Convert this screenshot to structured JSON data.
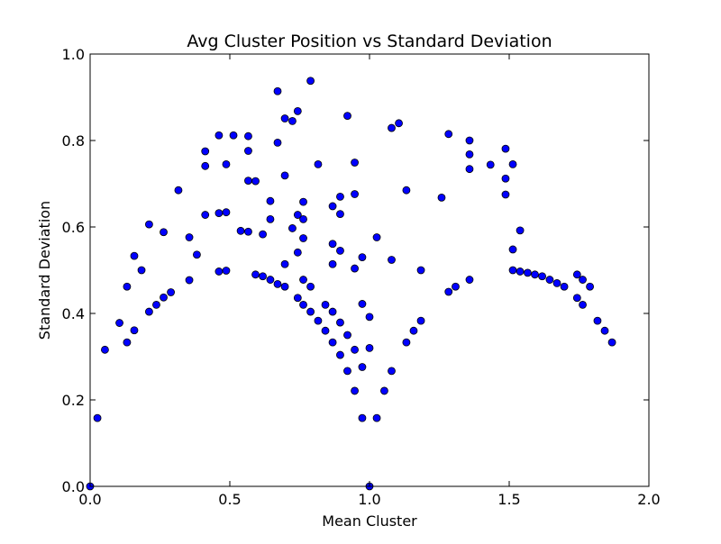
{
  "chart_data": {
    "type": "scatter",
    "title": "Avg Cluster Position vs Standard Deviation",
    "xlabel": "Mean Cluster",
    "ylabel": "Standard Deviation",
    "xlim": [
      0.0,
      2.0
    ],
    "ylim": [
      0.0,
      1.0
    ],
    "x_ticks": [
      "0.0",
      "0.5",
      "1.0",
      "1.5",
      "2.0"
    ],
    "y_ticks": [
      "0.0",
      "0.2",
      "0.4",
      "0.6",
      "0.8",
      "1.0"
    ],
    "grid": false,
    "marker_color": "#0000ff",
    "marker_edge_color": "#000000",
    "series": [
      {
        "points": [
          [
            0.0,
            0.0
          ],
          [
            0.026,
            0.158
          ],
          [
            0.053,
            0.316
          ],
          [
            0.105,
            0.378
          ],
          [
            0.132,
            0.333
          ],
          [
            0.132,
            0.462
          ],
          [
            0.158,
            0.361
          ],
          [
            0.158,
            0.533
          ],
          [
            0.184,
            0.5
          ],
          [
            0.211,
            0.404
          ],
          [
            0.211,
            0.606
          ],
          [
            0.237,
            0.42
          ],
          [
            0.263,
            0.437
          ],
          [
            0.263,
            0.588
          ],
          [
            0.289,
            0.449
          ],
          [
            0.316,
            0.685
          ],
          [
            0.355,
            0.477
          ],
          [
            0.355,
            0.576
          ],
          [
            0.382,
            0.536
          ],
          [
            0.412,
            0.628
          ],
          [
            0.412,
            0.741
          ],
          [
            0.412,
            0.775
          ],
          [
            0.461,
            0.497
          ],
          [
            0.461,
            0.632
          ],
          [
            0.461,
            0.812
          ],
          [
            0.487,
            0.499
          ],
          [
            0.487,
            0.634
          ],
          [
            0.487,
            0.745
          ],
          [
            0.513,
            0.812
          ],
          [
            0.539,
            0.591
          ],
          [
            0.566,
            0.589
          ],
          [
            0.566,
            0.707
          ],
          [
            0.566,
            0.776
          ],
          [
            0.566,
            0.81
          ],
          [
            0.592,
            0.49
          ],
          [
            0.592,
            0.706
          ],
          [
            0.618,
            0.486
          ],
          [
            0.618,
            0.583
          ],
          [
            0.645,
            0.478
          ],
          [
            0.645,
            0.618
          ],
          [
            0.645,
            0.66
          ],
          [
            0.671,
            0.468
          ],
          [
            0.671,
            0.795
          ],
          [
            0.671,
            0.914
          ],
          [
            0.697,
            0.462
          ],
          [
            0.697,
            0.514
          ],
          [
            0.697,
            0.719
          ],
          [
            0.697,
            0.851
          ],
          [
            0.724,
            0.597
          ],
          [
            0.724,
            0.845
          ],
          [
            0.743,
            0.436
          ],
          [
            0.743,
            0.541
          ],
          [
            0.743,
            0.628
          ],
          [
            0.743,
            0.868
          ],
          [
            0.763,
            0.42
          ],
          [
            0.763,
            0.478
          ],
          [
            0.763,
            0.574
          ],
          [
            0.763,
            0.618
          ],
          [
            0.763,
            0.658
          ],
          [
            0.789,
            0.404
          ],
          [
            0.789,
            0.462
          ],
          [
            0.789,
            0.938
          ],
          [
            0.816,
            0.383
          ],
          [
            0.816,
            0.745
          ],
          [
            0.842,
            0.36
          ],
          [
            0.842,
            0.42
          ],
          [
            0.868,
            0.333
          ],
          [
            0.868,
            0.404
          ],
          [
            0.868,
            0.514
          ],
          [
            0.868,
            0.561
          ],
          [
            0.868,
            0.648
          ],
          [
            0.895,
            0.304
          ],
          [
            0.895,
            0.379
          ],
          [
            0.895,
            0.545
          ],
          [
            0.895,
            0.63
          ],
          [
            0.895,
            0.67
          ],
          [
            0.921,
            0.267
          ],
          [
            0.921,
            0.35
          ],
          [
            0.921,
            0.857
          ],
          [
            0.947,
            0.221
          ],
          [
            0.947,
            0.316
          ],
          [
            0.947,
            0.504
          ],
          [
            0.947,
            0.676
          ],
          [
            0.947,
            0.749
          ],
          [
            0.974,
            0.158
          ],
          [
            0.974,
            0.276
          ],
          [
            0.974,
            0.422
          ],
          [
            0.974,
            0.53
          ],
          [
            1.0,
            0.0
          ],
          [
            1.0,
            0.32
          ],
          [
            1.0,
            0.392
          ],
          [
            1.026,
            0.158
          ],
          [
            1.026,
            0.576
          ],
          [
            1.053,
            0.221
          ],
          [
            1.079,
            0.267
          ],
          [
            1.079,
            0.524
          ],
          [
            1.079,
            0.829
          ],
          [
            1.105,
            0.84
          ],
          [
            1.132,
            0.333
          ],
          [
            1.132,
            0.685
          ],
          [
            1.158,
            0.36
          ],
          [
            1.184,
            0.383
          ],
          [
            1.184,
            0.5
          ],
          [
            1.258,
            0.668
          ],
          [
            1.283,
            0.45
          ],
          [
            1.283,
            0.815
          ],
          [
            1.308,
            0.462
          ],
          [
            1.358,
            0.478
          ],
          [
            1.358,
            0.734
          ],
          [
            1.358,
            0.768
          ],
          [
            1.358,
            0.8
          ],
          [
            1.433,
            0.744
          ],
          [
            1.487,
            0.675
          ],
          [
            1.487,
            0.712
          ],
          [
            1.487,
            0.781
          ],
          [
            1.513,
            0.5
          ],
          [
            1.513,
            0.548
          ],
          [
            1.513,
            0.745
          ],
          [
            1.539,
            0.497
          ],
          [
            1.539,
            0.592
          ],
          [
            1.566,
            0.494
          ],
          [
            1.592,
            0.49
          ],
          [
            1.618,
            0.486
          ],
          [
            1.645,
            0.478
          ],
          [
            1.671,
            0.47
          ],
          [
            1.697,
            0.462
          ],
          [
            1.743,
            0.436
          ],
          [
            1.743,
            0.49
          ],
          [
            1.763,
            0.42
          ],
          [
            1.763,
            0.478
          ],
          [
            1.789,
            0.462
          ],
          [
            1.816,
            0.383
          ],
          [
            1.842,
            0.36
          ],
          [
            1.868,
            0.333
          ]
        ]
      }
    ]
  }
}
